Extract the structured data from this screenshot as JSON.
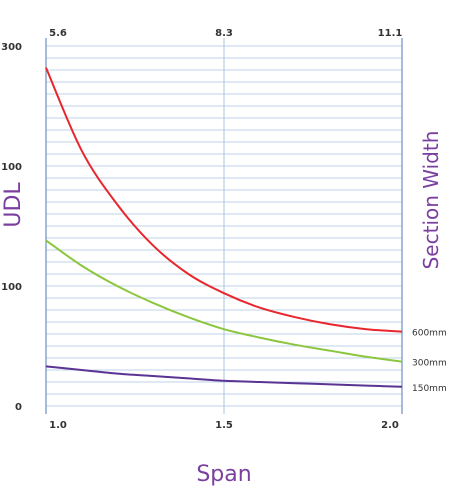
{
  "chart_data": {
    "type": "line",
    "title": "",
    "xlabel": "Span",
    "ylabel": "UDL",
    "y2label": "Section Width",
    "x": [
      1.0,
      1.1,
      1.2,
      1.3,
      1.4,
      1.5,
      1.6,
      1.7,
      1.8,
      1.9,
      2.0
    ],
    "x_ticks": [
      "1.0",
      "1.5",
      "2.0"
    ],
    "top_ticks": [
      "5.6",
      "8.3",
      "11.1"
    ],
    "y_ticks": [
      "0",
      "100",
      "100",
      "300"
    ],
    "y_scale": "nonlinear (tick labels as printed)",
    "grid": true,
    "colors": {
      "grid": "#a9c4e2",
      "axis": "#6a8fc0",
      "title": "#7b3fa0"
    },
    "series": [
      {
        "name": "600mm",
        "color": "#e8262d",
        "values": [
          282,
          213,
          168,
          134,
          110,
          94,
          82,
          74,
          68,
          64,
          62
        ]
      },
      {
        "name": "300mm",
        "color": "#8cc63e",
        "values": [
          138,
          117,
          100,
          86,
          74,
          64,
          57,
          51,
          46,
          41,
          37
        ]
      },
      {
        "name": "150mm",
        "color": "#5a3393",
        "values": [
          33,
          30,
          27,
          25,
          23,
          21,
          20,
          19,
          18,
          17,
          16
        ]
      }
    ]
  }
}
